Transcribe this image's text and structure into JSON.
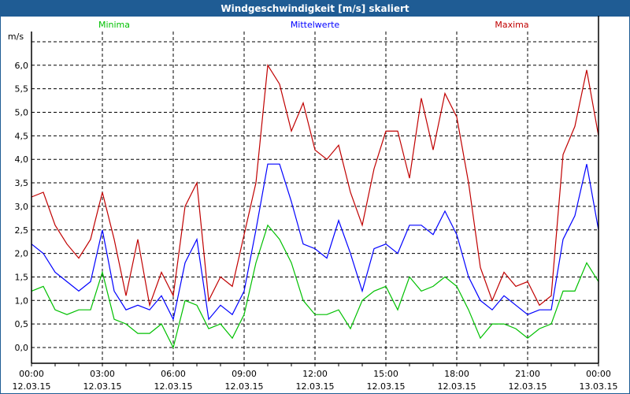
{
  "window": {
    "title": "Windgeschwindigkeit [m/s] skaliert"
  },
  "chart_data": {
    "type": "line",
    "title": "Windgeschwindigkeit [m/s] skaliert",
    "ylabel": "m/s",
    "xlabel": "",
    "ylim": [
      -0.33,
      6.5
    ],
    "xlim_hours": [
      0,
      24
    ],
    "grid": true,
    "legend_placement": "top",
    "y_ticks": [
      {
        "value": 0.0,
        "label": "0,0"
      },
      {
        "value": 0.5,
        "label": "0,5"
      },
      {
        "value": 1.0,
        "label": "1,0"
      },
      {
        "value": 1.5,
        "label": "1,5"
      },
      {
        "value": 2.0,
        "label": "2,0"
      },
      {
        "value": 2.5,
        "label": "2,5"
      },
      {
        "value": 3.0,
        "label": "3,0"
      },
      {
        "value": 3.5,
        "label": "3,5"
      },
      {
        "value": 4.0,
        "label": "4,0"
      },
      {
        "value": 4.5,
        "label": "4,5"
      },
      {
        "value": 5.0,
        "label": "5,0"
      },
      {
        "value": 5.5,
        "label": "5,5"
      },
      {
        "value": 6.0,
        "label": "6,0"
      }
    ],
    "x_ticks": [
      {
        "hour": 0,
        "time": "00:00",
        "date": "12.03.15"
      },
      {
        "hour": 3,
        "time": "03:00",
        "date": "12.03.15"
      },
      {
        "hour": 6,
        "time": "06:00",
        "date": "12.03.15"
      },
      {
        "hour": 9,
        "time": "09:00",
        "date": "12.03.15"
      },
      {
        "hour": 12,
        "time": "12:00",
        "date": "12.03.15"
      },
      {
        "hour": 15,
        "time": "15:00",
        "date": "12.03.15"
      },
      {
        "hour": 18,
        "time": "18:00",
        "date": "12.03.15"
      },
      {
        "hour": 21,
        "time": "21:00",
        "date": "12.03.15"
      },
      {
        "hour": 24,
        "time": "00:00",
        "date": "13.03.15"
      }
    ],
    "x_hours": [
      0,
      0.5,
      1,
      1.5,
      2,
      2.5,
      3,
      3.5,
      4,
      4.5,
      5,
      5.5,
      6,
      6.5,
      7,
      7.5,
      8,
      8.5,
      9,
      9.5,
      10,
      10.5,
      11,
      11.5,
      12,
      12.5,
      13,
      13.5,
      14,
      14.5,
      15,
      15.5,
      16,
      16.5,
      17,
      17.5,
      18,
      18.5,
      19,
      19.5,
      20,
      20.5,
      21,
      21.5,
      22,
      22.5,
      23,
      23.5,
      24
    ],
    "series": [
      {
        "name": "Minima",
        "color": "#00c000",
        "values": [
          1.2,
          1.3,
          0.8,
          0.7,
          0.8,
          0.8,
          1.6,
          0.6,
          0.5,
          0.3,
          0.3,
          0.5,
          0.0,
          1.0,
          0.9,
          0.4,
          0.5,
          0.2,
          0.7,
          1.8,
          2.6,
          2.3,
          1.8,
          1.0,
          0.7,
          0.7,
          0.8,
          0.4,
          1.0,
          1.2,
          1.3,
          0.8,
          1.5,
          1.2,
          1.3,
          1.5,
          1.3,
          0.8,
          0.2,
          0.5,
          0.5,
          0.4,
          0.2,
          0.4,
          0.5,
          1.2,
          1.2,
          1.8,
          1.4
        ]
      },
      {
        "name": "Mittelwerte",
        "color": "#0000ff",
        "values": [
          2.2,
          2.0,
          1.6,
          1.4,
          1.2,
          1.4,
          2.5,
          1.2,
          0.8,
          0.9,
          0.8,
          1.1,
          0.6,
          1.8,
          2.3,
          0.6,
          0.9,
          0.7,
          1.2,
          2.5,
          3.9,
          3.9,
          3.1,
          2.2,
          2.1,
          1.9,
          2.7,
          2.0,
          1.2,
          2.1,
          2.2,
          2.0,
          2.6,
          2.6,
          2.4,
          2.9,
          2.4,
          1.5,
          1.0,
          0.8,
          1.1,
          0.9,
          0.7,
          0.8,
          0.8,
          2.3,
          2.8,
          3.9,
          2.5
        ]
      },
      {
        "name": "Maxima",
        "color": "#c00000",
        "values": [
          3.2,
          3.3,
          2.6,
          2.2,
          1.9,
          2.3,
          3.3,
          2.3,
          1.1,
          2.3,
          0.9,
          1.6,
          1.1,
          3.0,
          3.5,
          1.0,
          1.5,
          1.3,
          2.4,
          3.5,
          6.0,
          5.6,
          4.6,
          5.2,
          4.2,
          4.0,
          4.3,
          3.3,
          2.6,
          3.8,
          4.6,
          4.6,
          3.6,
          5.3,
          4.2,
          5.4,
          4.9,
          3.5,
          1.7,
          1.0,
          1.6,
          1.3,
          1.4,
          0.9,
          1.1,
          4.1,
          4.7,
          5.9,
          4.5
        ]
      }
    ]
  }
}
